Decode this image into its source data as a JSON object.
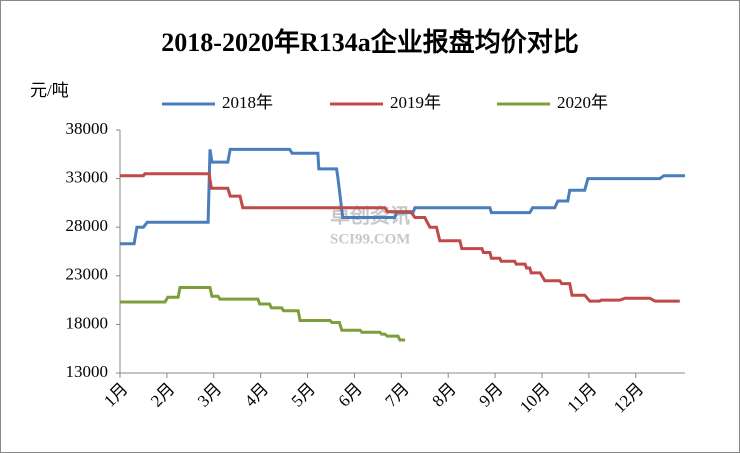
{
  "chart_data": {
    "type": "line",
    "title": "2018-2020年R134a企业报盘均价对比",
    "y_label": "元/吨",
    "watermark": [
      "卓创资讯",
      "SCI99.COM"
    ],
    "xlim": [
      1,
      13.05
    ],
    "xticks": [
      {
        "value": 1,
        "label": "1月"
      },
      {
        "value": 2,
        "label": "2月"
      },
      {
        "value": 3,
        "label": "3月"
      },
      {
        "value": 4,
        "label": "4月"
      },
      {
        "value": 5,
        "label": "5月"
      },
      {
        "value": 6,
        "label": "6月"
      },
      {
        "value": 7,
        "label": "7月"
      },
      {
        "value": 8,
        "label": "8月"
      },
      {
        "value": 9,
        "label": "9月"
      },
      {
        "value": 10,
        "label": "10月"
      },
      {
        "value": 11,
        "label": "11月"
      },
      {
        "value": 12,
        "label": "12月"
      }
    ],
    "ylim": [
      13000,
      38000
    ],
    "yticks": [
      13000,
      18000,
      23000,
      28000,
      33000,
      38000
    ],
    "grid": false,
    "legend": "top",
    "series": [
      {
        "name": "2018年",
        "color": "#4a7ebb",
        "x": [
          1,
          1.3,
          1.36,
          1.5,
          1.58,
          2.88,
          2.92,
          2.96,
          3.3,
          3.35,
          4.62,
          4.67,
          5.22,
          5.24,
          5.62,
          5.65,
          5.75,
          6.86,
          6.9,
          7.25,
          7.29,
          8.89,
          8.92,
          9.74,
          9.8,
          10.27,
          10.34,
          10.55,
          10.59,
          10.91,
          10.98,
          12.51,
          12.6,
          13.05
        ],
        "values": [
          26300,
          26300,
          28000,
          28000,
          28500,
          28500,
          36000,
          34700,
          34700,
          36000,
          36000,
          35600,
          35600,
          34000,
          34000,
          33000,
          29000,
          29000,
          29500,
          29500,
          30000,
          30000,
          29500,
          29500,
          30000,
          30000,
          30700,
          30700,
          31800,
          31800,
          33000,
          33000,
          33300,
          33300
        ]
      },
      {
        "name": "2019年",
        "color": "#be4b48",
        "x": [
          1,
          1.5,
          1.53,
          2.9,
          2.95,
          3.3,
          3.35,
          3.56,
          3.62,
          6.65,
          6.7,
          7.2,
          7.29,
          7.5,
          7.61,
          7.75,
          7.82,
          8.25,
          8.29,
          8.72,
          8.75,
          8.89,
          8.92,
          9.1,
          9.13,
          9.42,
          9.45,
          9.64,
          9.67,
          9.74,
          9.77,
          9.96,
          10.06,
          10.38,
          10.42,
          10.59,
          10.64,
          10.91,
          11.02,
          11.23,
          11.26,
          11.66,
          11.77,
          12.3,
          12.41,
          12.94
        ],
        "values": [
          33300,
          33300,
          33500,
          33500,
          32000,
          32000,
          31200,
          31200,
          30000,
          30000,
          29600,
          29600,
          29000,
          29000,
          28000,
          28000,
          26600,
          26600,
          25800,
          25800,
          25400,
          25400,
          24800,
          24800,
          24500,
          24500,
          24200,
          24200,
          23800,
          23800,
          23300,
          23300,
          22500,
          22500,
          22200,
          22200,
          21000,
          21000,
          20400,
          20400,
          20500,
          20500,
          20700,
          20700,
          20400,
          20400
        ]
      },
      {
        "name": "2020年",
        "color": "#7d9e3a",
        "x": [
          1,
          1.96,
          2.02,
          2.24,
          2.28,
          2.92,
          2.96,
          3.09,
          3.13,
          3.94,
          3.98,
          4.19,
          4.23,
          4.45,
          4.49,
          4.8,
          4.84,
          5.48,
          5.52,
          5.68,
          5.73,
          6.12,
          6.16,
          6.54,
          6.58,
          6.65,
          6.7,
          6.93,
          6.97,
          7.08
        ],
        "values": [
          20300,
          20300,
          20800,
          20800,
          21800,
          21800,
          20900,
          20900,
          20600,
          20600,
          20100,
          20100,
          19700,
          19700,
          19400,
          19400,
          18400,
          18400,
          18200,
          18200,
          17400,
          17400,
          17200,
          17200,
          17000,
          17000,
          16800,
          16800,
          16400,
          16400
        ]
      }
    ]
  }
}
